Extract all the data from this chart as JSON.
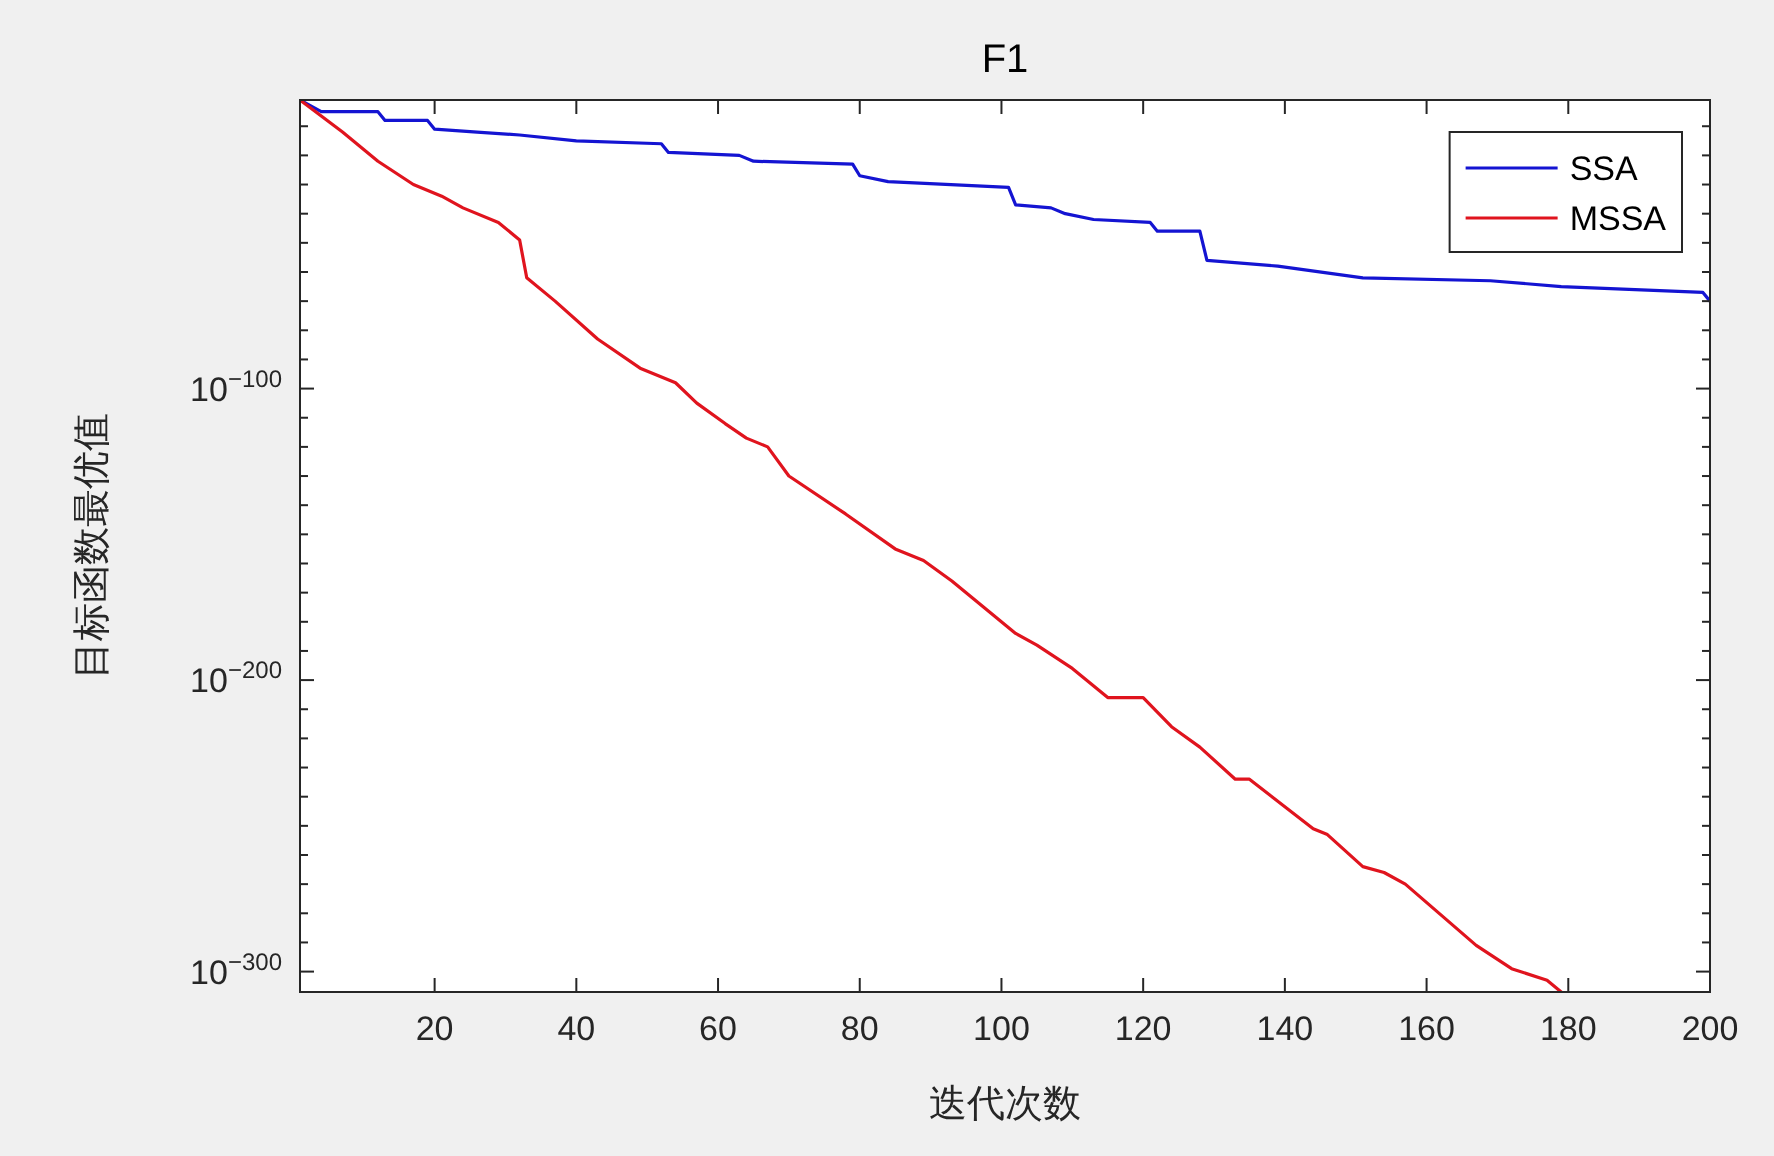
{
  "chart_data": {
    "type": "line",
    "title": "F1",
    "xlabel": "迭代次数",
    "ylabel": "目标函数最优值",
    "log": "y",
    "xlim": [
      1,
      200
    ],
    "xticks": [
      20,
      40,
      60,
      80,
      100,
      120,
      140,
      160,
      180,
      200
    ],
    "ylim": [
      1e-307,
      0.1
    ],
    "yticks": [
      {
        "value": 1e-300,
        "label": "10$^{−300}$"
      },
      {
        "value": 1e-290,
        "label": null
      },
      {
        "value": 1e-280,
        "label": null
      },
      {
        "value": 1e-270,
        "label": null
      },
      {
        "value": 1e-260,
        "label": null
      },
      {
        "value": 1e-250,
        "label": null
      },
      {
        "value": 1e-240,
        "label": null
      },
      {
        "value": 1e-230,
        "label": null
      },
      {
        "value": 1e-220,
        "label": null
      },
      {
        "value": 1e-210,
        "label": null
      },
      {
        "value": 1e-200,
        "label": "10$^{−200}$"
      },
      {
        "value": 1e-190,
        "label": null
      },
      {
        "value": 1e-180,
        "label": null
      },
      {
        "value": 1e-170,
        "label": null
      },
      {
        "value": 1e-160,
        "label": null
      },
      {
        "value": 1e-150,
        "label": null
      },
      {
        "value": 1e-140,
        "label": null
      },
      {
        "value": 1e-130,
        "label": null
      },
      {
        "value": 1e-120,
        "label": null
      },
      {
        "value": 1e-110,
        "label": null
      },
      {
        "value": 1e-100,
        "label": "10$^{−100}$"
      },
      {
        "value": 1e-90,
        "label": null
      },
      {
        "value": 1e-80,
        "label": null
      },
      {
        "value": 1e-70,
        "label": null
      },
      {
        "value": 1e-60,
        "label": null
      },
      {
        "value": 1e-50,
        "label": null
      },
      {
        "value": 1e-40,
        "label": null
      },
      {
        "value": 1e-30,
        "label": null
      },
      {
        "value": 1e-20,
        "label": null
      },
      {
        "value": 1e-10,
        "label": null
      }
    ],
    "legend": "top right",
    "series": [
      {
        "name": "SSA",
        "color": "#1414d2",
        "x": [
          1,
          4,
          12,
          13,
          19,
          20,
          26,
          32,
          40,
          52,
          53,
          63,
          65,
          79,
          80,
          84,
          101,
          102,
          107,
          109,
          113,
          121,
          122,
          128,
          129,
          139,
          151,
          169,
          179,
          199,
          200
        ],
        "values": [
          0.1,
          1e-05,
          1e-05,
          1e-08,
          1e-08,
          1e-11,
          1e-12,
          1e-13,
          1e-15,
          1e-16,
          1e-19,
          1e-20,
          1e-22,
          1e-23,
          1e-27,
          1e-29,
          1e-31,
          1e-37,
          1e-38,
          1e-40,
          1e-42,
          1e-43,
          1e-46,
          1e-46,
          1e-56,
          1e-58,
          1e-62,
          1e-63,
          1e-65,
          1e-67,
          1e-70
        ]
      },
      {
        "name": "MSSA",
        "color": "#e0141e",
        "x": [
          1,
          7,
          12,
          17,
          21,
          24,
          29,
          32,
          33,
          37,
          43,
          49,
          54,
          57,
          61,
          64,
          67,
          70,
          78,
          85,
          89,
          93,
          102,
          105,
          110,
          115,
          120,
          124,
          128,
          133,
          135,
          144,
          146,
          151,
          154,
          157,
          167,
          172,
          177,
          179
        ],
        "values": [
          0.1,
          1e-12,
          1e-22,
          1e-30,
          1e-34,
          1e-38,
          1e-43,
          1e-49,
          1e-62,
          1e-70,
          1e-83,
          1e-93,
          1e-98,
          1e-105,
          1e-112,
          1e-117,
          1e-120,
          1e-130,
          1e-143,
          1e-155,
          1e-159,
          1e-166,
          1e-184,
          1e-188,
          1e-196,
          1e-206,
          1e-206,
          1e-216,
          1e-223,
          1e-234,
          1e-234,
          1e-251,
          1e-253,
          1e-264,
          1e-266,
          1e-270,
          1e-291,
          1e-299,
          1e-303,
          1e-307
        ]
      }
    ]
  }
}
